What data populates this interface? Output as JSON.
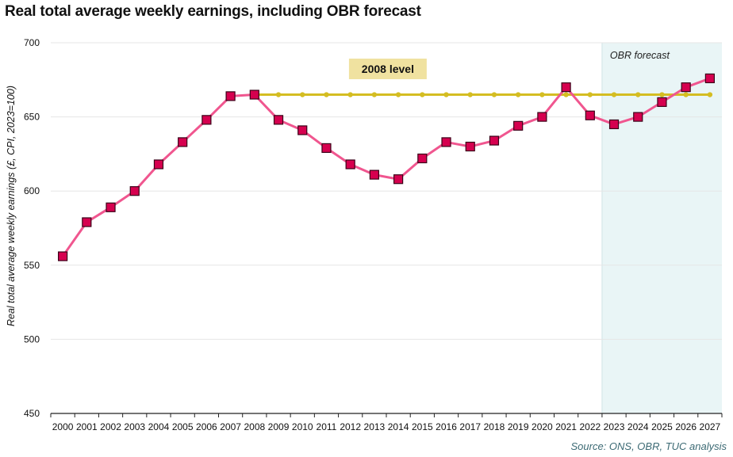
{
  "title": "Real total average weekly earnings, including OBR forecast",
  "source": "Source: ONS, OBR, TUC analysis",
  "chart_data": {
    "type": "line",
    "title": "Real total average weekly earnings, including OBR forecast",
    "xlabel": "",
    "ylabel": "Real total average weekly earnings (£, CPI, 2023=100)",
    "ylim": [
      450,
      700
    ],
    "yticks": [
      450,
      500,
      550,
      600,
      650,
      700
    ],
    "grid": true,
    "categories": [
      "2000",
      "2001",
      "2002",
      "2003",
      "2004",
      "2005",
      "2006",
      "2007",
      "2008",
      "2009",
      "2010",
      "2011",
      "2012",
      "2013",
      "2014",
      "2015",
      "2016",
      "2017",
      "2018",
      "2019",
      "2020",
      "2021",
      "2022",
      "2023",
      "2024",
      "2025",
      "2026",
      "2027"
    ],
    "series": [
      {
        "values": [
          556,
          579,
          589,
          600,
          618,
          633,
          648,
          664,
          665,
          648,
          641,
          629,
          618,
          611,
          608,
          622,
          633,
          630,
          634,
          644,
          650,
          670,
          651,
          645,
          650,
          660,
          670,
          676
        ],
        "color": "#f0568f",
        "marker_color": "#d6004f",
        "marker": "square"
      }
    ],
    "reference_line": {
      "label": "2008 level",
      "value": 665,
      "from": "2008",
      "to": "2027",
      "color": "#d4bd22",
      "label_bg": "#f0e2a0"
    },
    "forecast_region": {
      "label": "OBR  forecast",
      "from": "2022",
      "to": "2027",
      "color": "#e9f5f6"
    }
  }
}
